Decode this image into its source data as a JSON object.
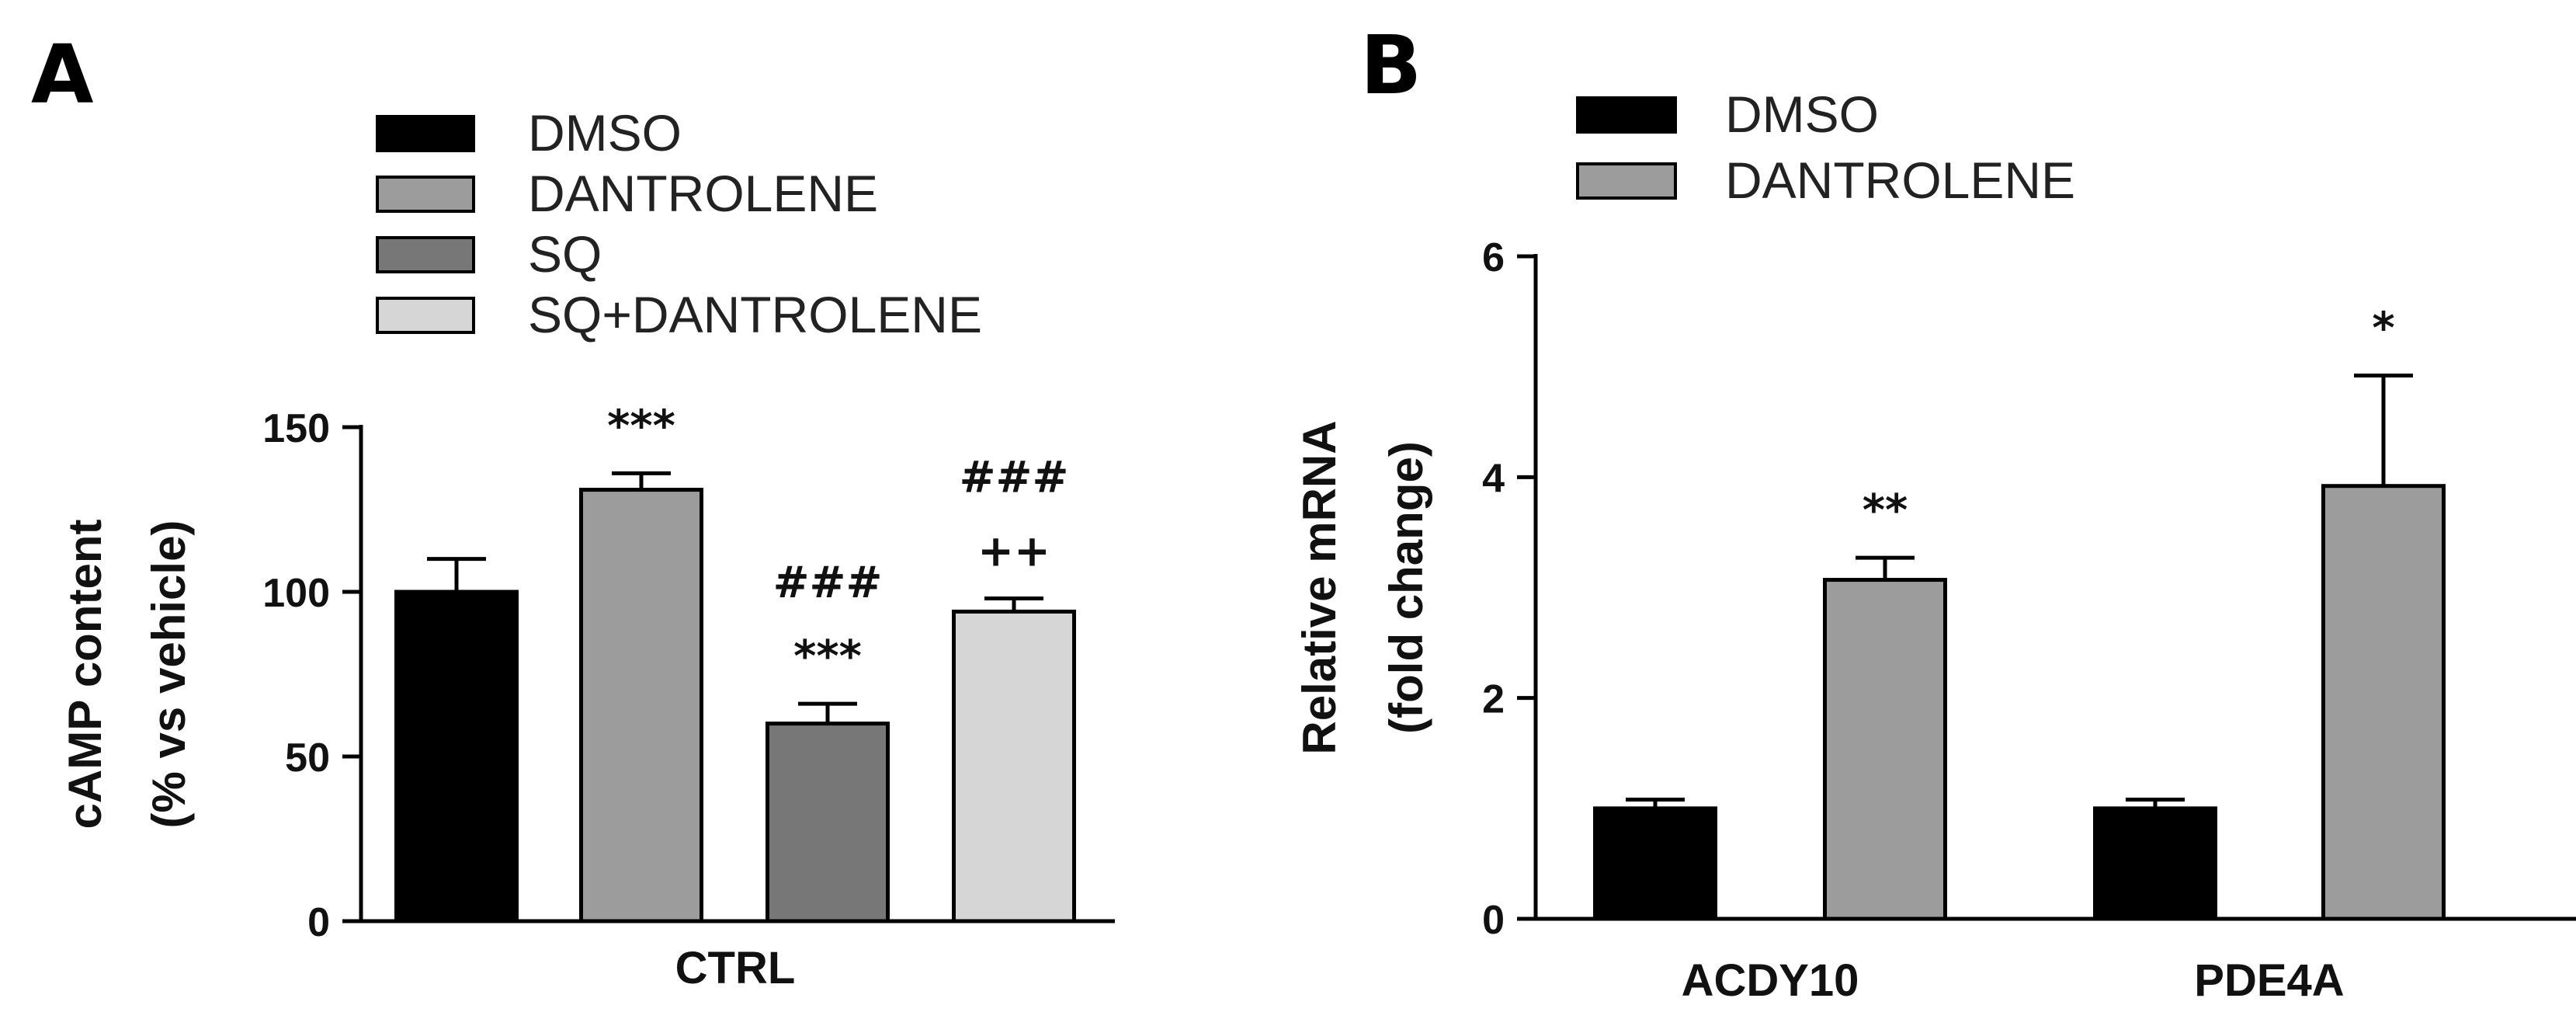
{
  "colors": {
    "DMSO": "#000000",
    "DANTROLENE": "#9c9c9c",
    "SQ": "#777777",
    "SQ+DANTROLENE": "#d6d6d6"
  },
  "chart_data": [
    {
      "panel": "A",
      "type": "bar",
      "categories": [
        "CTRL"
      ],
      "series": [
        {
          "name": "DMSO",
          "values": [
            100
          ],
          "error": [
            10
          ],
          "annotations": [
            []
          ]
        },
        {
          "name": "DANTROLENE",
          "values": [
            131
          ],
          "error": [
            5
          ],
          "annotations": [
            [
              "***"
            ]
          ]
        },
        {
          "name": "SQ",
          "values": [
            60
          ],
          "error": [
            6
          ],
          "annotations": [
            [
              "###",
              "***"
            ]
          ]
        },
        {
          "name": "SQ+DANTROLENE",
          "values": [
            94
          ],
          "error": [
            4
          ],
          "annotations": [
            [
              "###",
              "++"
            ]
          ]
        }
      ],
      "ylabel_lines": [
        "cAMP content",
        "(%  vs vehicle)"
      ],
      "ylim": [
        0,
        150
      ],
      "yticks": [
        0,
        50,
        100,
        150
      ],
      "legend": "top"
    },
    {
      "panel": "B",
      "type": "bar",
      "categories": [
        "ACDY10",
        "PDE4A"
      ],
      "series": [
        {
          "name": "DMSO",
          "values": [
            1.0,
            1.0
          ],
          "error": [
            0.08,
            0.08
          ],
          "annotations": [
            [],
            []
          ]
        },
        {
          "name": "DANTROLENE",
          "values": [
            3.07,
            3.92
          ],
          "error": [
            0.2,
            1.0
          ],
          "annotations": [
            [
              "**"
            ],
            [
              "*"
            ]
          ]
        }
      ],
      "ylabel_lines": [
        "Relative mRNA",
        "(fold change)"
      ],
      "ylim": [
        0,
        6
      ],
      "yticks": [
        0,
        2,
        4,
        6
      ],
      "legend": "top"
    }
  ]
}
